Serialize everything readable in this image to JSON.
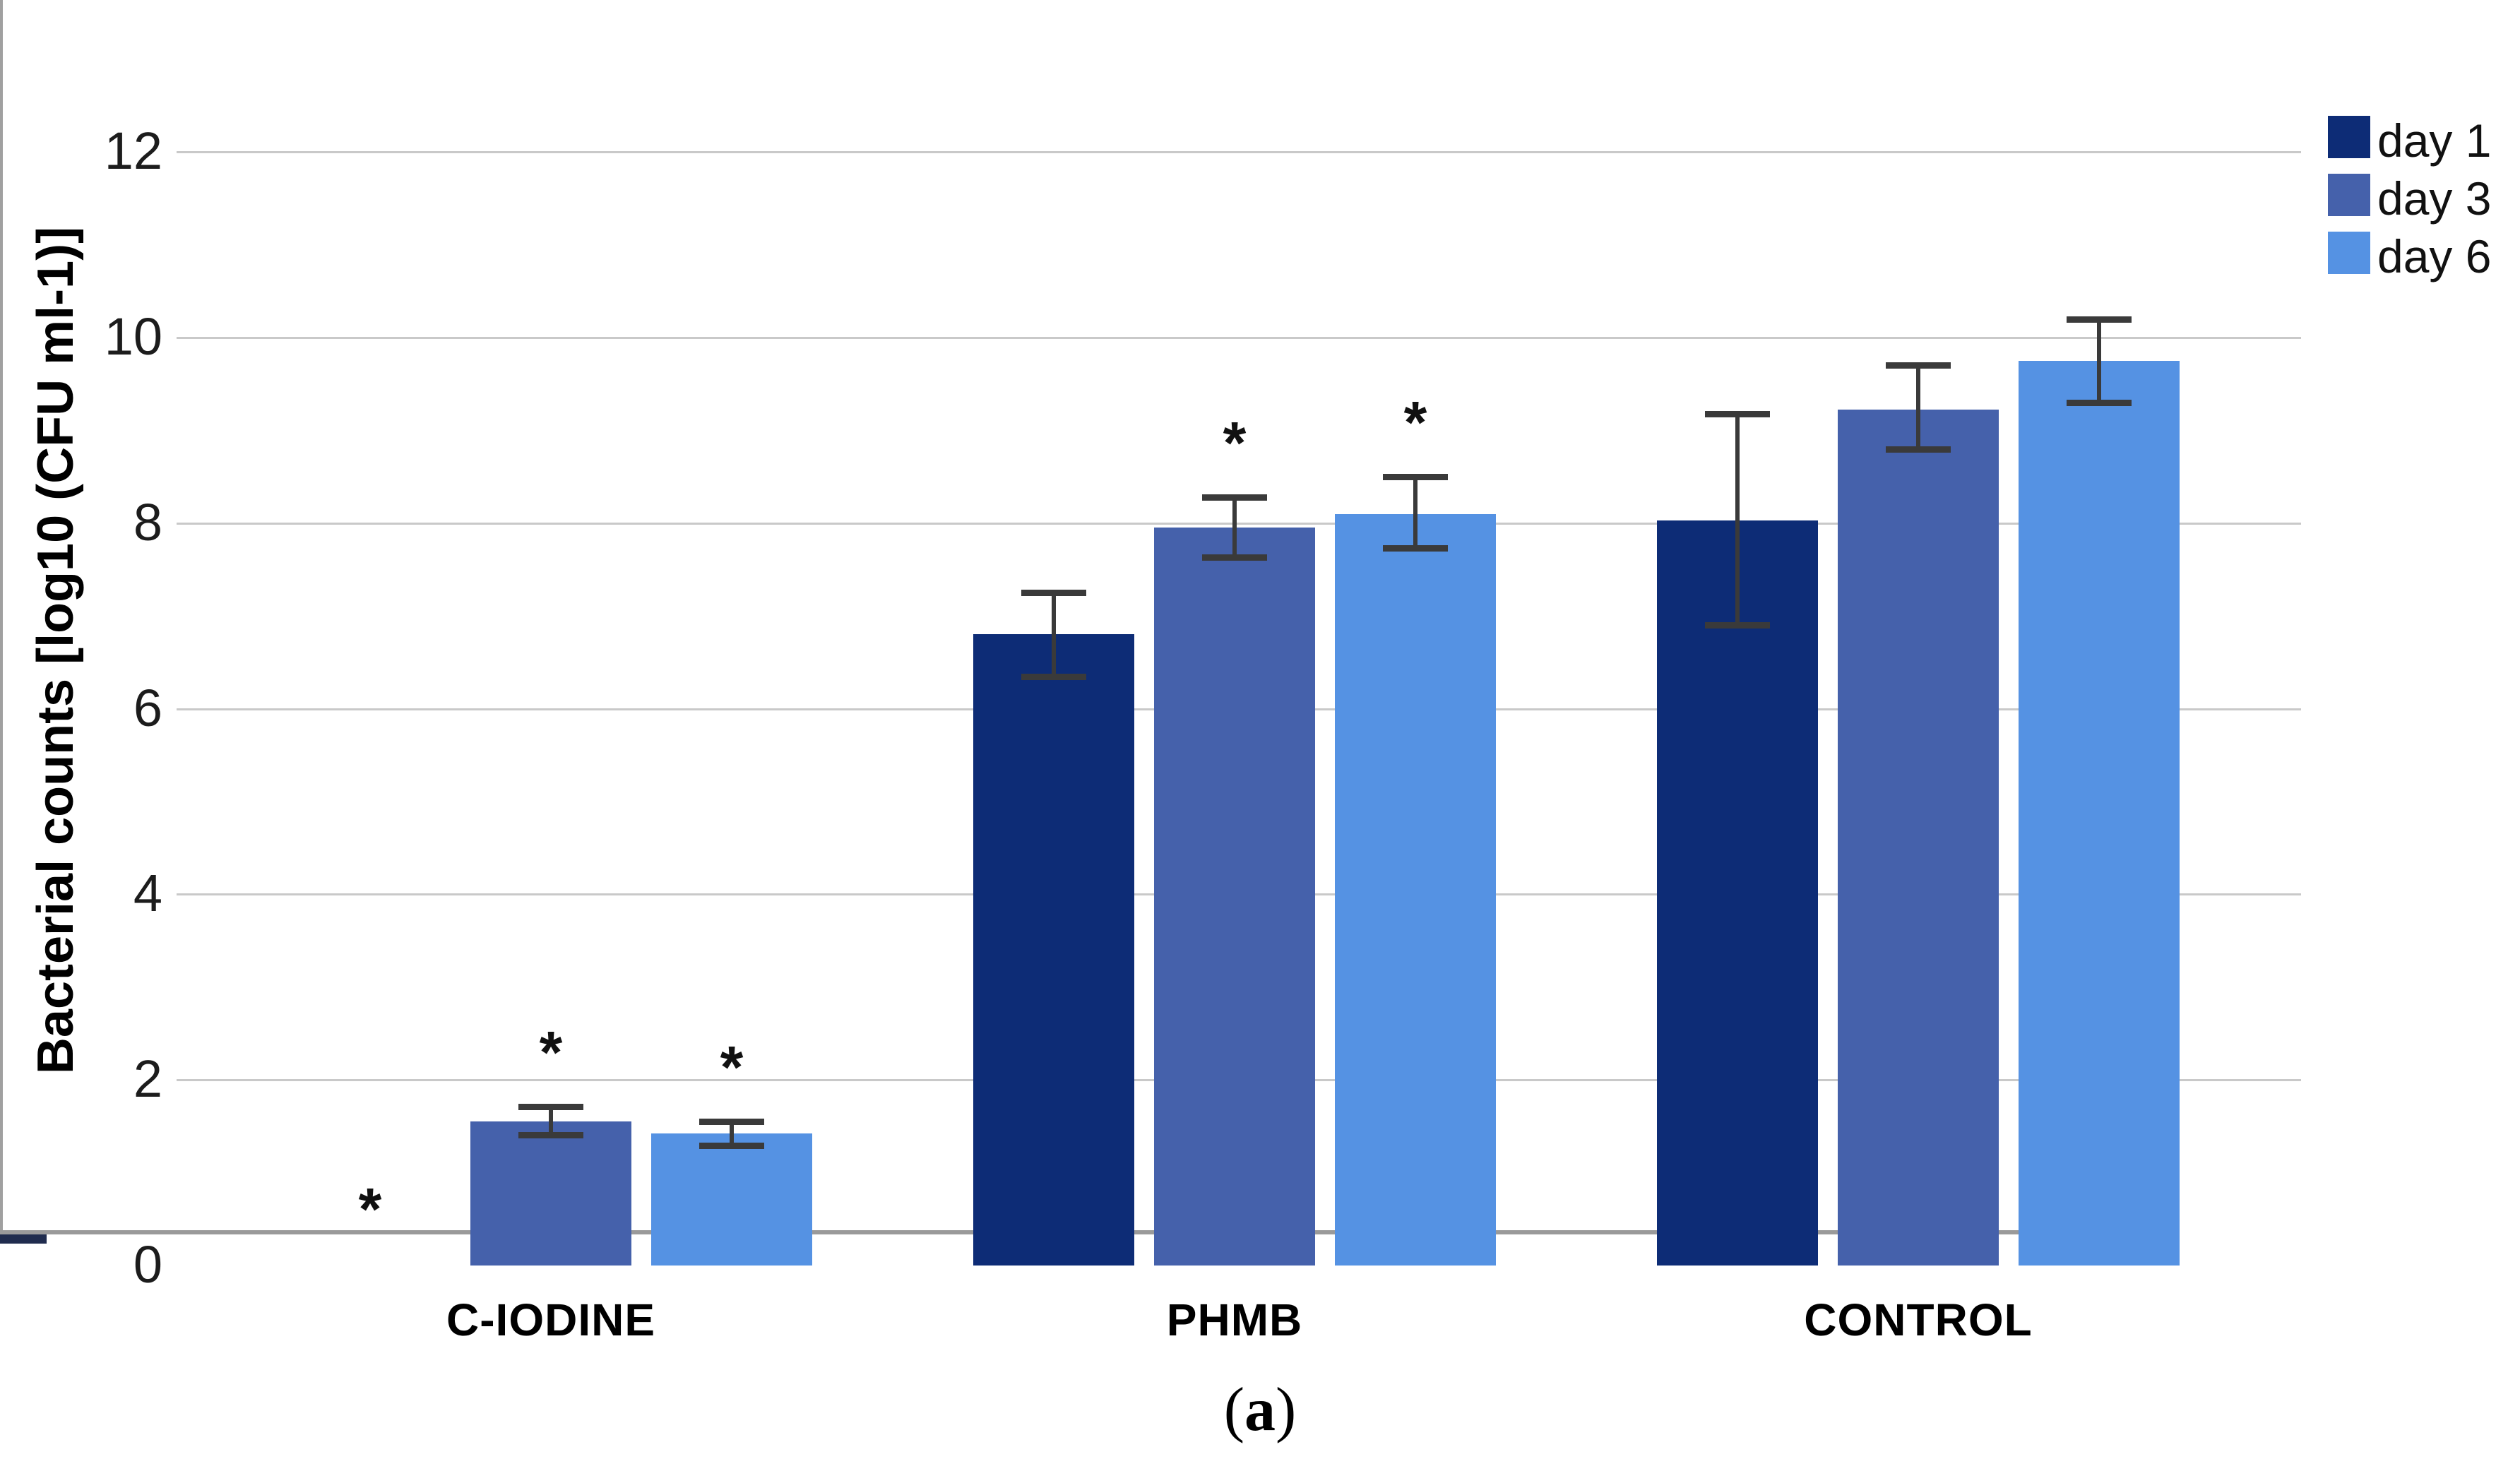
{
  "chart_data": {
    "type": "bar",
    "title": "",
    "ylabel": "Bacterial counts [log10 (CFU ml-1)]",
    "xlabel": "",
    "caption": {
      "open": "(",
      "letter": "a",
      "close": ")"
    },
    "ylim": [
      0,
      13.25
    ],
    "yticks": [
      0,
      2,
      4,
      6,
      8,
      10,
      12
    ],
    "grid": true,
    "legend_position": "top-right",
    "categories": [
      "C-IODINE",
      "PHMB",
      "CONTROL"
    ],
    "series": [
      {
        "name": "day 1",
        "color": "#0d2c76",
        "values": [
          0.02,
          6.8,
          8.03
        ],
        "err_low": [
          0,
          0.45,
          1.13
        ],
        "err_high": [
          0,
          0.45,
          1.15
        ],
        "significant": [
          true,
          false,
          false
        ]
      },
      {
        "name": "day 3",
        "color": "#4561ab",
        "values": [
          1.55,
          7.95,
          9.22
        ],
        "err_low": [
          0.14,
          0.32,
          0.42
        ],
        "err_high": [
          0.16,
          0.33,
          0.48
        ],
        "significant": [
          true,
          true,
          false
        ]
      },
      {
        "name": "day 6",
        "color": "#5592e3",
        "values": [
          1.42,
          8.1,
          9.75
        ],
        "err_low": [
          0.13,
          0.37,
          0.45
        ],
        "err_high": [
          0.13,
          0.4,
          0.45
        ],
        "significant": [
          true,
          true,
          false
        ]
      }
    ],
    "significance_marker": "*",
    "colors": {
      "error_bar": "#3a3a3a",
      "zero_dash": "#202c4e",
      "axis": "#a0a0a0",
      "baseline": "#9a9a9a",
      "gridline": "#c9c9c9",
      "text": "#1c1c1c"
    }
  }
}
